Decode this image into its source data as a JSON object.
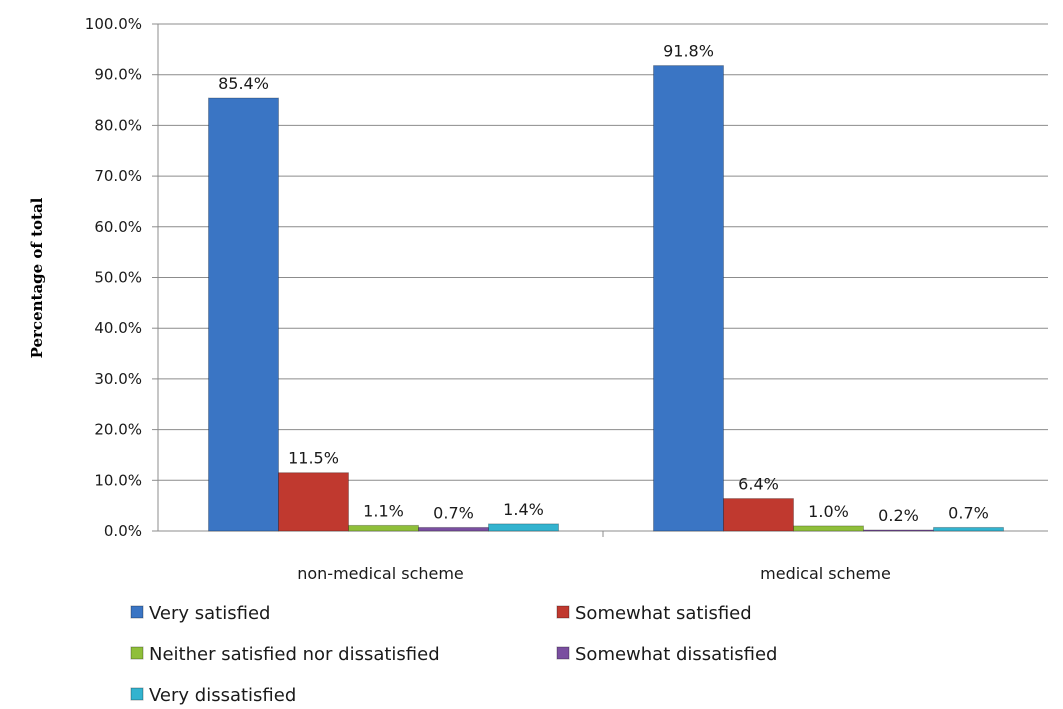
{
  "chart_data": {
    "type": "bar",
    "title": "",
    "xlabel": "",
    "ylabel": "Percentage of total",
    "ylim": [
      0,
      100
    ],
    "yticks": [
      "0.0%",
      "10.0%",
      "20.0%",
      "30.0%",
      "40.0%",
      "50.0%",
      "60.0%",
      "70.0%",
      "80.0%",
      "90.0%",
      "100.0%"
    ],
    "grid": true,
    "legend_position": "bottom",
    "categories": [
      "non-medical scheme",
      "medical scheme"
    ],
    "series": [
      {
        "name": "Very satisfied",
        "color": "#3a75c4",
        "values": [
          85.4,
          91.8
        ],
        "labels": [
          "85.4%",
          "91.8%"
        ]
      },
      {
        "name": "Somewhat satisfied",
        "color": "#c0392f",
        "values": [
          11.5,
          6.4
        ],
        "labels": [
          "11.5%",
          "6.4%"
        ]
      },
      {
        "name": "Neither satisfied nor dissatisfied",
        "color": "#8fbf3a",
        "values": [
          1.1,
          1.0
        ],
        "labels": [
          "1.1%",
          "1.0%"
        ]
      },
      {
        "name": "Somewhat dissatisfied",
        "color": "#7a4fa0",
        "values": [
          0.7,
          0.2
        ],
        "labels": [
          "0.7%",
          "0.2%"
        ]
      },
      {
        "name": "Very dissatisfied",
        "color": "#33b3cf",
        "values": [
          1.4,
          0.7
        ],
        "labels": [
          "1.4%",
          "0.7%"
        ]
      }
    ]
  }
}
